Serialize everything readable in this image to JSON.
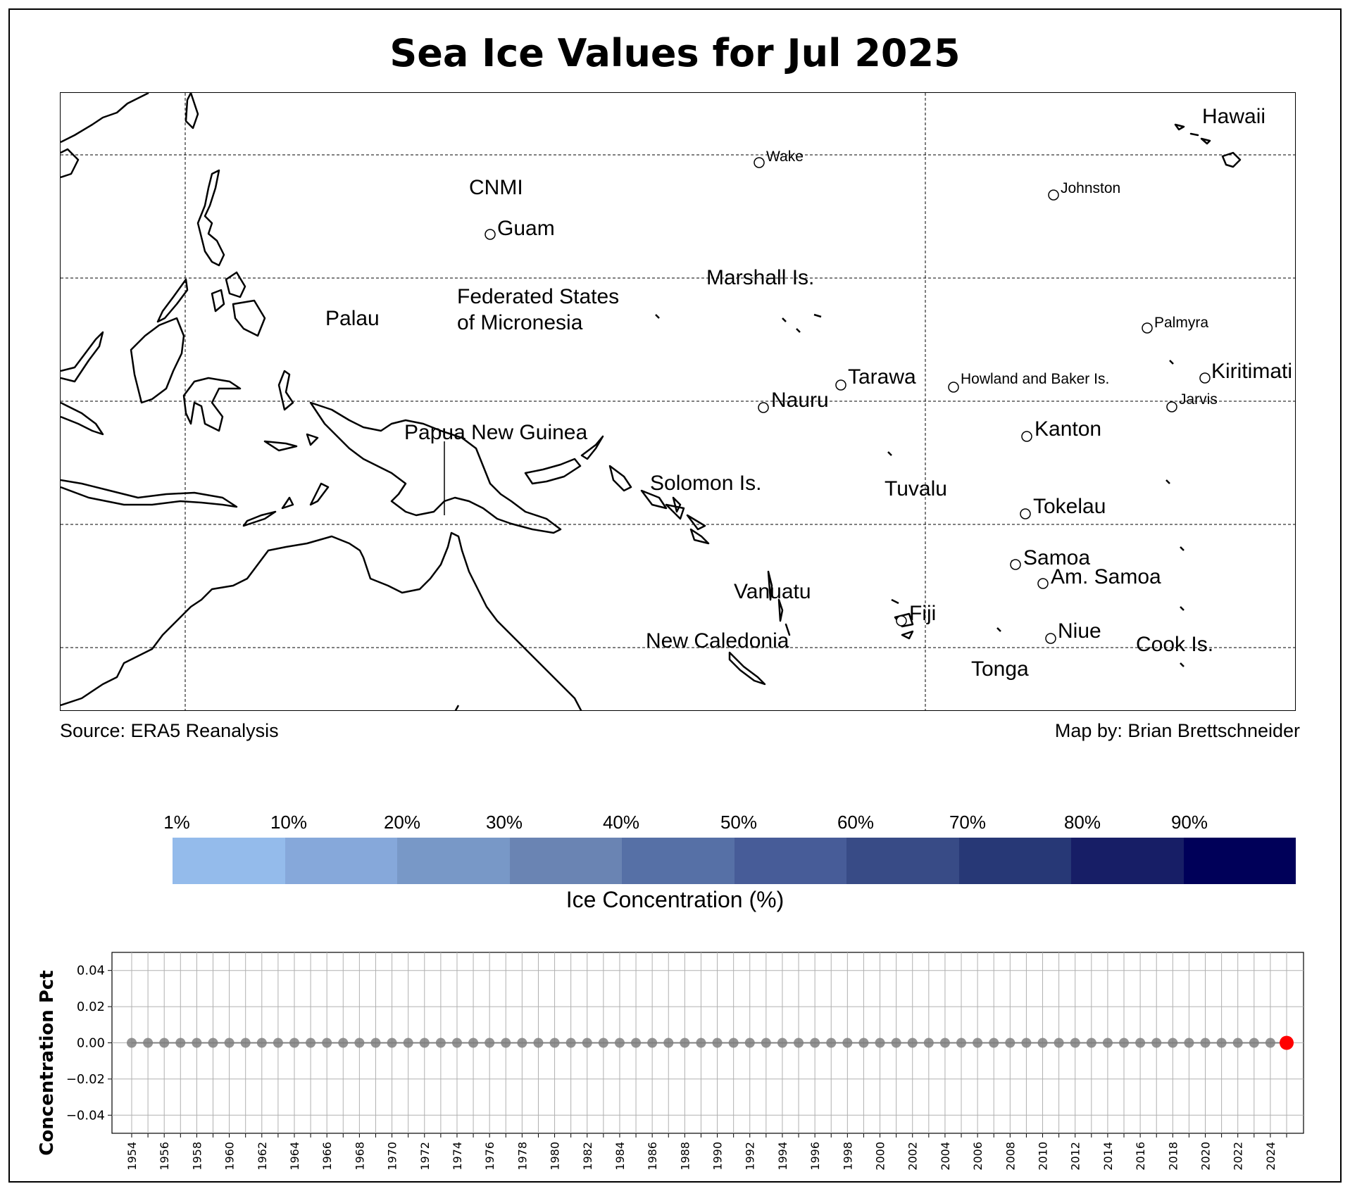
{
  "title": "Sea Ice Values for Jul 2025",
  "credits": {
    "source": "Source: ERA5 Reanalysis",
    "author": "Map by: Brian Brettschneider"
  },
  "map_labels": [
    {
      "name": "Hawaii",
      "size": "big"
    },
    {
      "name": "Wake",
      "size": "small"
    },
    {
      "name": "CNMI",
      "size": "big"
    },
    {
      "name": "Johnston",
      "size": "small"
    },
    {
      "name": "Guam",
      "size": "big"
    },
    {
      "name": "Marshall Is.",
      "size": "big"
    },
    {
      "name": "Federated States",
      "size": "big"
    },
    {
      "name": "of Micronesia",
      "size": "big"
    },
    {
      "name": "Palau",
      "size": "big"
    },
    {
      "name": "Palmyra",
      "size": "small"
    },
    {
      "name": "Kiritimati",
      "size": "big"
    },
    {
      "name": "Tarawa",
      "size": "big"
    },
    {
      "name": "Howland and Baker Is.",
      "size": "small"
    },
    {
      "name": "Jarvis",
      "size": "small"
    },
    {
      "name": "Nauru",
      "size": "big"
    },
    {
      "name": "Kanton",
      "size": "big"
    },
    {
      "name": "Papua New Guinea",
      "size": "big"
    },
    {
      "name": "Solomon Is.",
      "size": "big"
    },
    {
      "name": "Tuvalu",
      "size": "big"
    },
    {
      "name": "Tokelau",
      "size": "big"
    },
    {
      "name": "Samoa",
      "size": "big"
    },
    {
      "name": "Am. Samoa",
      "size": "big"
    },
    {
      "name": "Vanuatu",
      "size": "big"
    },
    {
      "name": "Fiji",
      "size": "big"
    },
    {
      "name": "Niue",
      "size": "big"
    },
    {
      "name": "New Caledonia",
      "size": "big"
    },
    {
      "name": "Cook Is.",
      "size": "big"
    },
    {
      "name": "Tonga",
      "size": "big"
    }
  ],
  "colorbar": {
    "label": "Ice Concentration (%)",
    "ticks": [
      "1%",
      "10%",
      "20%",
      "30%",
      "40%",
      "50%",
      "60%",
      "70%",
      "80%",
      "90%"
    ],
    "colors": [
      "#94bbeb",
      "#86a8da",
      "#7898c7",
      "#6a84b3",
      "#5670a6",
      "#475c98",
      "#384b86",
      "#273876",
      "#171e66",
      "#000059"
    ]
  },
  "chart_data": {
    "type": "scatter",
    "title": "",
    "xlabel": "",
    "ylabel": "Concentration Pct",
    "x": [
      1954,
      1955,
      1956,
      1957,
      1958,
      1959,
      1960,
      1961,
      1962,
      1963,
      1964,
      1965,
      1966,
      1967,
      1968,
      1969,
      1970,
      1971,
      1972,
      1973,
      1974,
      1975,
      1976,
      1977,
      1978,
      1979,
      1980,
      1981,
      1982,
      1983,
      1984,
      1985,
      1986,
      1987,
      1988,
      1989,
      1990,
      1991,
      1992,
      1993,
      1994,
      1995,
      1996,
      1997,
      1998,
      1999,
      2000,
      2001,
      2002,
      2003,
      2004,
      2005,
      2006,
      2007,
      2008,
      2009,
      2010,
      2011,
      2012,
      2013,
      2014,
      2015,
      2016,
      2017,
      2018,
      2019,
      2020,
      2021,
      2022,
      2023,
      2024,
      2025
    ],
    "y": [
      0,
      0,
      0,
      0,
      0,
      0,
      0,
      0,
      0,
      0,
      0,
      0,
      0,
      0,
      0,
      0,
      0,
      0,
      0,
      0,
      0,
      0,
      0,
      0,
      0,
      0,
      0,
      0,
      0,
      0,
      0,
      0,
      0,
      0,
      0,
      0,
      0,
      0,
      0,
      0,
      0,
      0,
      0,
      0,
      0,
      0,
      0,
      0,
      0,
      0,
      0,
      0,
      0,
      0,
      0,
      0,
      0,
      0,
      0,
      0,
      0,
      0,
      0,
      0,
      0,
      0,
      0,
      0,
      0,
      0,
      0,
      0
    ],
    "xticks": [
      "1954",
      "1956",
      "1958",
      "1960",
      "1962",
      "1964",
      "1966",
      "1968",
      "1970",
      "1972",
      "1974",
      "1976",
      "1978",
      "1980",
      "1982",
      "1984",
      "1986",
      "1988",
      "1990",
      "1992",
      "1994",
      "1996",
      "1998",
      "2000",
      "2002",
      "2004",
      "2006",
      "2008",
      "2010",
      "2012",
      "2014",
      "2016",
      "2018",
      "2020",
      "2022",
      "2024"
    ],
    "yticks": [
      "0.04",
      "0.02",
      "0.00",
      "−0.02",
      "−0.04"
    ],
    "ylim": [
      -0.05,
      0.05
    ],
    "highlight_year": 2025,
    "point_color": "#808080",
    "highlight_color": "#ff0000",
    "grid": true
  }
}
